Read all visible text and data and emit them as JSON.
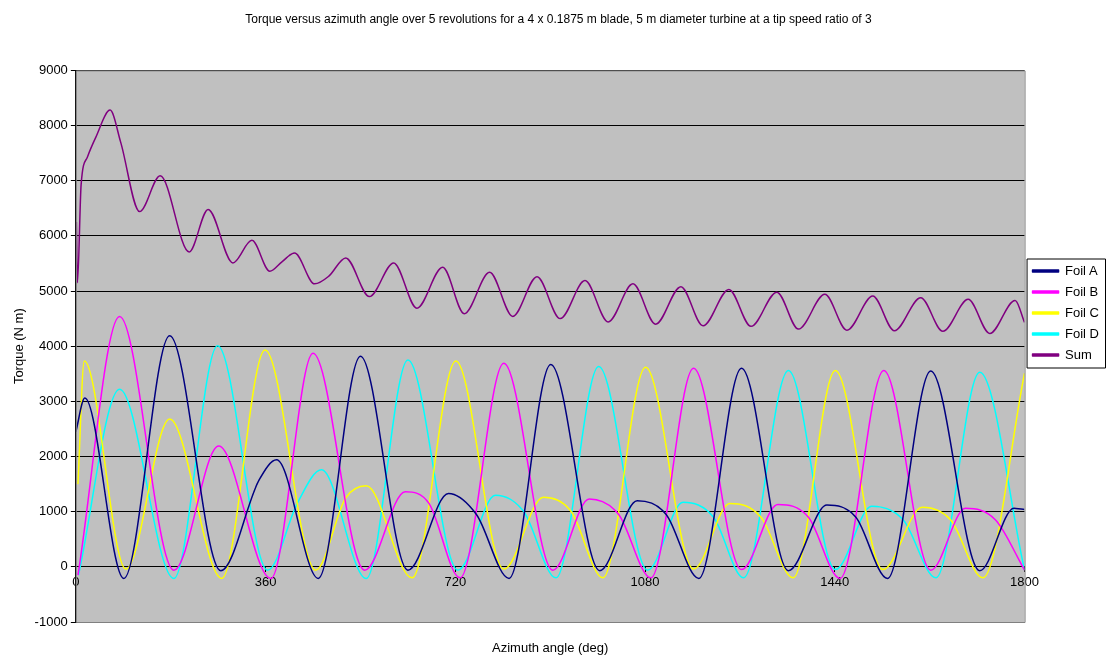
{
  "chart_data": {
    "type": "line",
    "title": "Torque versus azimuth angle over 5 revolutions for a 4 x 0.1875 m blade, 5 m diameter turbine at a tip speed ratio of 3",
    "xlabel": "Azimuth angle (deg)",
    "ylabel": "Torque (N m)",
    "xlim": [
      0,
      1800
    ],
    "xticks": [
      0,
      360,
      720,
      1080,
      1440,
      1800
    ],
    "ylim": [
      -1000,
      9000
    ],
    "yticks": [
      -1000,
      0,
      1000,
      2000,
      3000,
      4000,
      5000,
      6000,
      7000,
      8000,
      9000
    ],
    "grid": "y",
    "legend": "right",
    "marker": "none",
    "line_style": "solid",
    "series": [
      {
        "name": "Foil A",
        "color": "#000080",
        "x": [
          0,
          17,
          91,
          178,
          275,
          348,
          381,
          460,
          540,
          630,
          707,
          760,
          822,
          901,
          994,
          1065,
          1120,
          1182,
          1263,
          1352,
          1425,
          1480,
          1540,
          1622,
          1715,
          1780,
          1800
        ],
        "values": [
          2450,
          3060,
          -210,
          4190,
          -70,
          1580,
          1940,
          -210,
          3820,
          -60,
          1330,
          950,
          -210,
          3670,
          -70,
          1200,
          950,
          -210,
          3600,
          -70,
          1120,
          900,
          -210,
          3550,
          -70,
          1060,
          1040
        ]
      },
      {
        "name": "Foil B",
        "color": "#ff00ff",
        "x": [
          4,
          83,
          186,
          271,
          370,
          450,
          548,
          625,
          670,
          729,
          812,
          905,
          974,
          1030,
          1091,
          1172,
          1263,
          1332,
          1390,
          1450,
          1533,
          1622,
          1688,
          1745,
          1800
        ],
        "values": [
          -150,
          4540,
          -60,
          2190,
          -210,
          3870,
          -60,
          1360,
          1150,
          -200,
          3690,
          -60,
          1230,
          950,
          -200,
          3600,
          -50,
          1130,
          900,
          -210,
          3560,
          -60,
          1060,
          850,
          -60
        ]
      },
      {
        "name": "Foil C",
        "color": "#ffff00",
        "x": [
          4,
          16,
          95,
          178,
          277,
          359,
          455,
          512,
          551,
          638,
          721,
          812,
          887,
          940,
          1000,
          1081,
          1172,
          1241,
          1300,
          1361,
          1441,
          1531,
          1606,
          1660,
          1721,
          1800
        ],
        "values": [
          1500,
          3730,
          -40,
          2680,
          -210,
          3930,
          -60,
          1250,
          1470,
          -200,
          3730,
          -40,
          1260,
          1000,
          -200,
          3620,
          -40,
          1150,
          900,
          -200,
          3560,
          -50,
          1080,
          850,
          -200,
          3510
        ]
      },
      {
        "name": "Foil D",
        "color": "#00ffff",
        "x": [
          5,
          83,
          186,
          269,
          364,
          421,
          466,
          551,
          630,
          725,
          796,
          850,
          911,
          992,
          1085,
          1152,
          1210,
          1267,
          1352,
          1441,
          1510,
          1570,
          1632,
          1715,
          1800
        ],
        "values": [
          -150,
          3220,
          -210,
          4010,
          -60,
          1170,
          1760,
          -210,
          3750,
          -60,
          1300,
          1000,
          -200,
          3630,
          -60,
          1170,
          900,
          -200,
          3560,
          -50,
          1100,
          850,
          -200,
          3530,
          -60
        ]
      },
      {
        "name": "Sum",
        "color": "#800080",
        "x": [
          1,
          3,
          10,
          22,
          38,
          65,
          85,
          121,
          160,
          215,
          251,
          298,
          334,
          368,
          391,
          415,
          453,
          480,
          512,
          557,
          603,
          647,
          696,
          737,
          785,
          829,
          875,
          919,
          966,
          1010,
          1057,
          1100,
          1148,
          1190,
          1239,
          1281,
          1330,
          1371,
          1421,
          1463,
          1512,
          1553,
          1603,
          1645,
          1693,
          1734,
          1782,
          1800
        ],
        "values": [
          6250,
          5150,
          6930,
          7430,
          7790,
          8280,
          7700,
          6440,
          7090,
          5710,
          6480,
          5510,
          5920,
          5360,
          5530,
          5690,
          5130,
          5270,
          5600,
          4900,
          5510,
          4690,
          5430,
          4590,
          5340,
          4540,
          5260,
          4500,
          5190,
          4440,
          5130,
          4400,
          5080,
          4370,
          5030,
          4360,
          4980,
          4310,
          4940,
          4290,
          4910,
          4280,
          4880,
          4270,
          4850,
          4230,
          4830,
          4430
        ]
      }
    ]
  }
}
